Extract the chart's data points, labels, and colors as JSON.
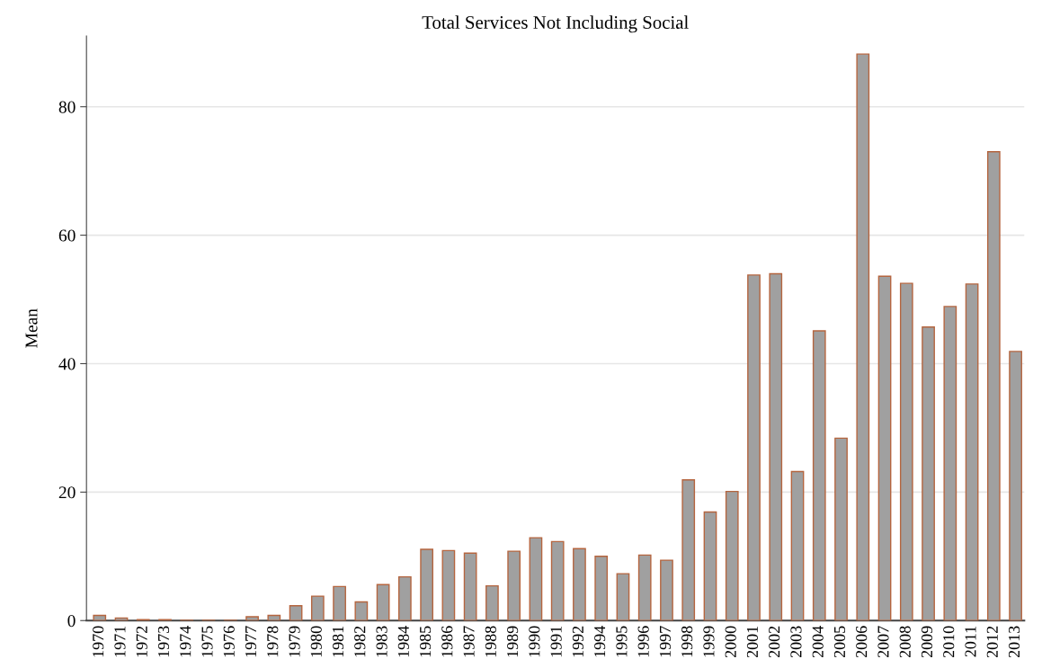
{
  "chart_data": {
    "type": "bar",
    "title": "Total Services Not Including Social",
    "ylabel": "Mean",
    "categories": [
      "1970",
      "1971",
      "1972",
      "1973",
      "1974",
      "1975",
      "1976",
      "1977",
      "1978",
      "1979",
      "1980",
      "1981",
      "1982",
      "1983",
      "1984",
      "1985",
      "1986",
      "1987",
      "1988",
      "1989",
      "1990",
      "1991",
      "1992",
      "1994",
      "1995",
      "1996",
      "1997",
      "1998",
      "1999",
      "2000",
      "2001",
      "2002",
      "2003",
      "2004",
      "2005",
      "2006",
      "2007",
      "2008",
      "2009",
      "2010",
      "2011",
      "2012",
      "2013"
    ],
    "series": [
      {
        "color": "#a0a0a0",
        "values": [
          0.8,
          0.4,
          0.15,
          0.15,
          0.05,
          0.05,
          0.05,
          0.6,
          0.8,
          2.3,
          3.8,
          5.3,
          2.9,
          5.6,
          6.8,
          11.1,
          10.9,
          10.5,
          5.4,
          10.8,
          12.9,
          12.3,
          11.2,
          10.0,
          7.3,
          10.2,
          9.4,
          21.9,
          16.9,
          20.1,
          53.8,
          54.0,
          23.2,
          45.1,
          28.4,
          88.2,
          53.6,
          52.5,
          45.7,
          48.9,
          52.4,
          73.0,
          41.9
        ]
      }
    ],
    "ylim": [
      0,
      91
    ],
    "yticks": [
      0,
      20,
      40,
      60,
      80
    ],
    "grid": "y"
  }
}
